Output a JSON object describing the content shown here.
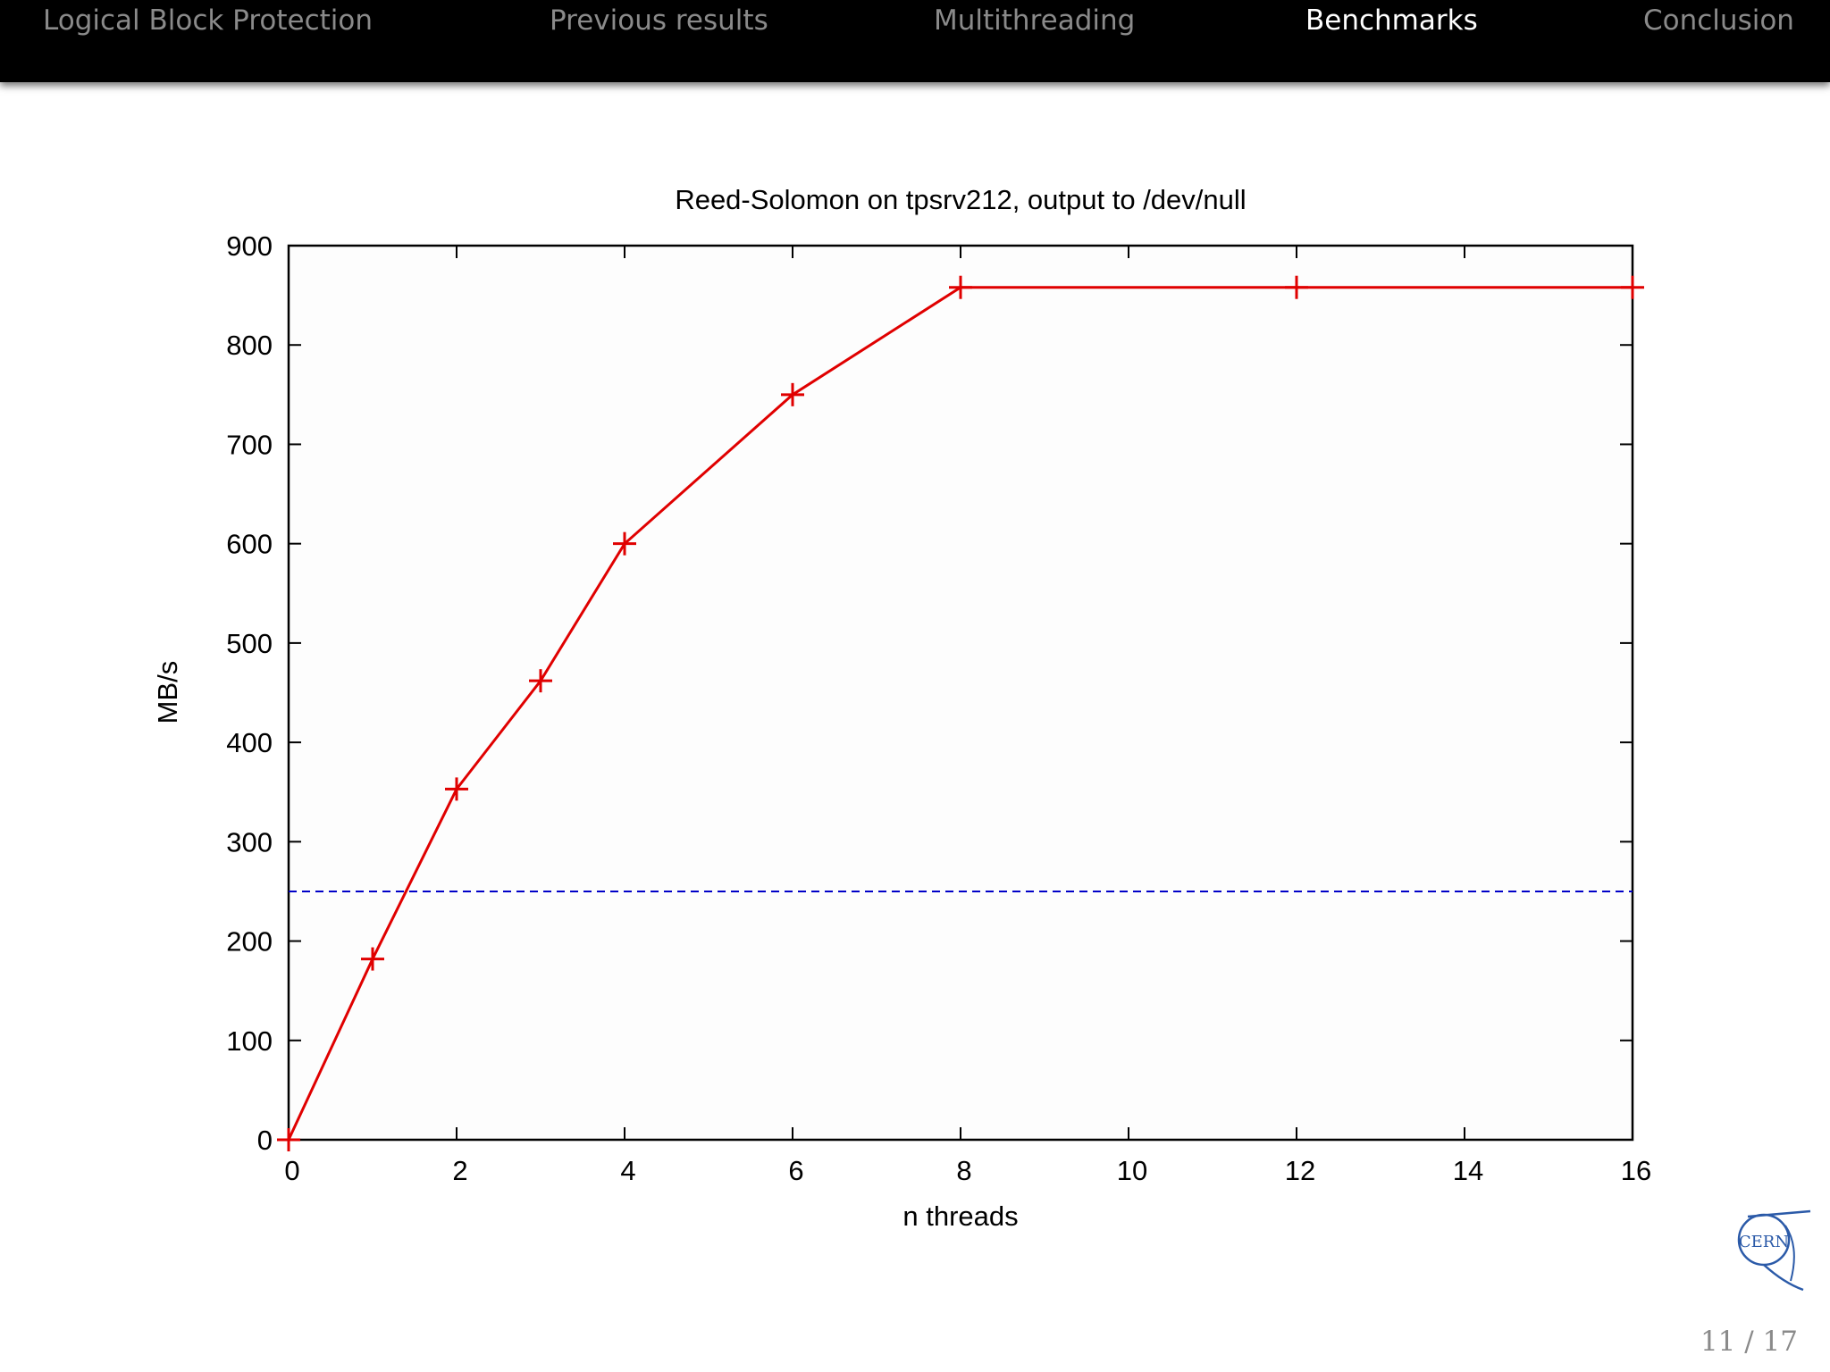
{
  "nav": {
    "items": [
      {
        "label": "Logical Block Protection",
        "active": false
      },
      {
        "label": "Previous results",
        "active": false
      },
      {
        "label": "Multithreading",
        "active": false
      },
      {
        "label": "Benchmarks",
        "active": true
      },
      {
        "label": "Conclusion",
        "active": false
      }
    ]
  },
  "colors": {
    "navbar_bg": "#000000",
    "nav_inactive": "#8a8a8a",
    "nav_active": "#ffffff",
    "series_line": "#e00000",
    "reference_line": "#0000c8"
  },
  "chart_data": {
    "type": "line",
    "title": "Reed-Solomon on tpsrv212, output to /dev/null",
    "xlabel": "n threads",
    "ylabel": "MB/s",
    "xlim": [
      0,
      16
    ],
    "ylim": [
      0,
      900
    ],
    "x_ticks": [
      0,
      2,
      4,
      6,
      8,
      10,
      12,
      14,
      16
    ],
    "y_ticks": [
      0,
      100,
      200,
      300,
      400,
      500,
      600,
      700,
      800,
      900
    ],
    "grid": false,
    "series": [
      {
        "x": [
          0,
          1,
          2,
          3,
          4,
          6,
          8,
          12,
          16
        ],
        "y": [
          0,
          182,
          353,
          462,
          600,
          750,
          858,
          858,
          858
        ],
        "color": "#e00000",
        "marker": "plus",
        "style": "solid"
      }
    ],
    "reference_lines": [
      {
        "y": 250,
        "color": "#0000c8",
        "style": "dashed"
      }
    ]
  },
  "logo": {
    "text": "CERN",
    "icon": "cern-logo-icon"
  },
  "footer": {
    "page_number": "11 / 17"
  }
}
